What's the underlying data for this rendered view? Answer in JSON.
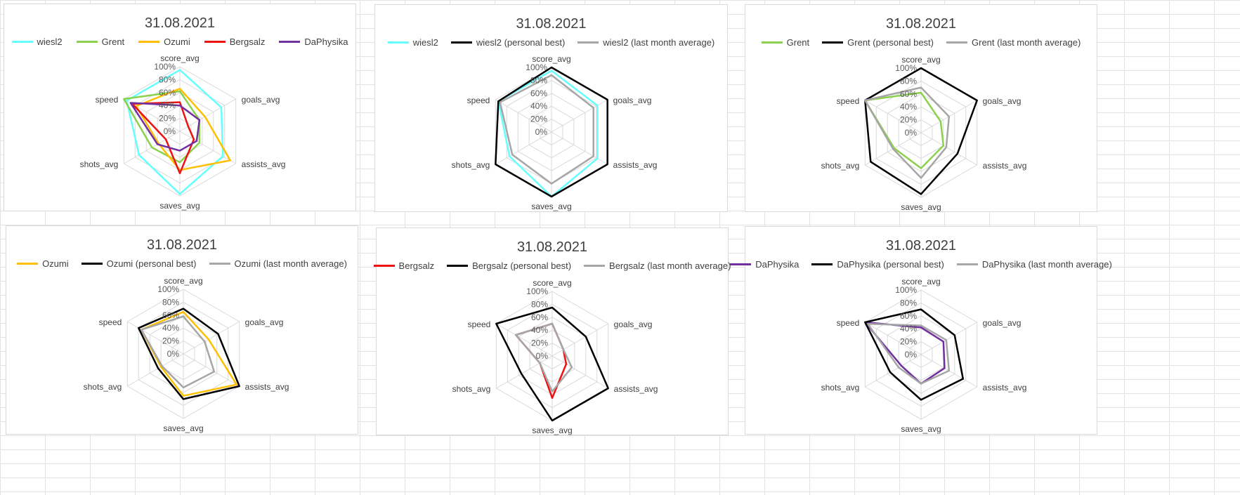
{
  "chart_data": [
    {
      "type": "radar",
      "title": "31.08.2021",
      "axes": [
        "score_avg",
        "goals_avg",
        "assists_avg",
        "saves_avg",
        "shots_avg",
        "speed"
      ],
      "ticks": [
        "0%",
        "20%",
        "40%",
        "60%",
        "80%",
        "100%"
      ],
      "rmax": 100,
      "legend_position": "top",
      "series": [
        {
          "name": "wiesl2",
          "color": "#66ffff",
          "values": [
            95,
            74,
            77,
            97,
            73,
            95
          ]
        },
        {
          "name": "Grent",
          "color": "#8bd14e",
          "values": [
            62,
            35,
            35,
            48,
            50,
            100
          ]
        },
        {
          "name": "Ozumi",
          "color": "#ffbf00",
          "values": [
            66,
            45,
            90,
            60,
            38,
            78
          ]
        },
        {
          "name": "Bergsalz",
          "color": "#ee1111",
          "values": [
            45,
            15,
            25,
            65,
            25,
            85
          ]
        },
        {
          "name": "DaPhysika",
          "color": "#7030a0",
          "values": [
            40,
            35,
            30,
            30,
            40,
            88
          ]
        }
      ]
    },
    {
      "type": "radar",
      "title": "31.08.2021",
      "axes": [
        "score_avg",
        "goals_avg",
        "assists_avg",
        "saves_avg",
        "shots_avg",
        "speed"
      ],
      "ticks": [
        "0%",
        "20%",
        "40%",
        "60%",
        "80%",
        "100%"
      ],
      "rmax": 100,
      "legend_position": "top",
      "series": [
        {
          "name": "wiesl2",
          "color": "#66ffff",
          "values": [
            95,
            82,
            82,
            100,
            75,
            95
          ]
        },
        {
          "name": "wiesl2 (personal best)",
          "color": "#000000",
          "values": [
            100,
            100,
            100,
            100,
            100,
            95
          ]
        },
        {
          "name": "wiesl2 (last month average)",
          "color": "#a6a6a6",
          "values": [
            88,
            75,
            75,
            80,
            70,
            92
          ]
        }
      ]
    },
    {
      "type": "radar",
      "title": "31.08.2021",
      "axes": [
        "score_avg",
        "goals_avg",
        "assists_avg",
        "saves_avg",
        "shots_avg",
        "speed"
      ],
      "ticks": [
        "0%",
        "20%",
        "40%",
        "60%",
        "80%",
        "100%"
      ],
      "rmax": 100,
      "legend_position": "top",
      "series": [
        {
          "name": "Grent",
          "color": "#8bd14e",
          "values": [
            62,
            35,
            40,
            55,
            48,
            100
          ]
        },
        {
          "name": "Grent (personal best)",
          "color": "#000000",
          "values": [
            100,
            100,
            65,
            95,
            90,
            100
          ]
        },
        {
          "name": "Grent (last month average)",
          "color": "#a6a6a6",
          "values": [
            70,
            50,
            45,
            70,
            50,
            100
          ]
        }
      ]
    },
    {
      "type": "radar",
      "title": "31.08.2021",
      "axes": [
        "score_avg",
        "goals_avg",
        "assists_avg",
        "saves_avg",
        "shots_avg",
        "speed"
      ],
      "ticks": [
        "0%",
        "20%",
        "40%",
        "60%",
        "80%",
        "100%"
      ],
      "rmax": 100,
      "legend_position": "top",
      "series": [
        {
          "name": "Ozumi",
          "color": "#ffbf00",
          "values": [
            65,
            45,
            95,
            65,
            40,
            75
          ]
        },
        {
          "name": "Ozumi (personal best)",
          "color": "#000000",
          "values": [
            70,
            62,
            100,
            70,
            45,
            80
          ]
        },
        {
          "name": "Ozumi (last month average)",
          "color": "#a6a6a6",
          "values": [
            58,
            38,
            55,
            52,
            38,
            75
          ]
        }
      ]
    },
    {
      "type": "radar",
      "title": "31.08.2021",
      "axes": [
        "score_avg",
        "goals_avg",
        "assists_avg",
        "saves_avg",
        "shots_avg",
        "speed"
      ],
      "ticks": [
        "0%",
        "20%",
        "40%",
        "60%",
        "80%",
        "100%"
      ],
      "rmax": 100,
      "legend_position": "top",
      "series": [
        {
          "name": "Bergsalz",
          "color": "#ee1111",
          "values": [
            50,
            20,
            25,
            65,
            22,
            65
          ]
        },
        {
          "name": "Bergsalz (personal best)",
          "color": "#000000",
          "values": [
            75,
            60,
            100,
            100,
            55,
            100
          ]
        },
        {
          "name": "Bergsalz (last month average)",
          "color": "#a6a6a6",
          "values": [
            50,
            20,
            35,
            55,
            22,
            65
          ]
        }
      ]
    },
    {
      "type": "radar",
      "title": "31.08.2021",
      "axes": [
        "score_avg",
        "goals_avg",
        "assists_avg",
        "saves_avg",
        "shots_avg",
        "speed"
      ],
      "ticks": [
        "0%",
        "20%",
        "40%",
        "60%",
        "80%",
        "100%"
      ],
      "rmax": 100,
      "legend_position": "top",
      "series": [
        {
          "name": "DaPhysika",
          "color": "#7030a0",
          "values": [
            42,
            40,
            42,
            45,
            35,
            100
          ]
        },
        {
          "name": "DaPhysika (personal best)",
          "color": "#000000",
          "values": [
            70,
            60,
            75,
            70,
            55,
            100
          ]
        },
        {
          "name": "DaPhysika (last month average)",
          "color": "#a6a6a6",
          "values": [
            45,
            45,
            50,
            45,
            40,
            95
          ]
        }
      ]
    }
  ]
}
